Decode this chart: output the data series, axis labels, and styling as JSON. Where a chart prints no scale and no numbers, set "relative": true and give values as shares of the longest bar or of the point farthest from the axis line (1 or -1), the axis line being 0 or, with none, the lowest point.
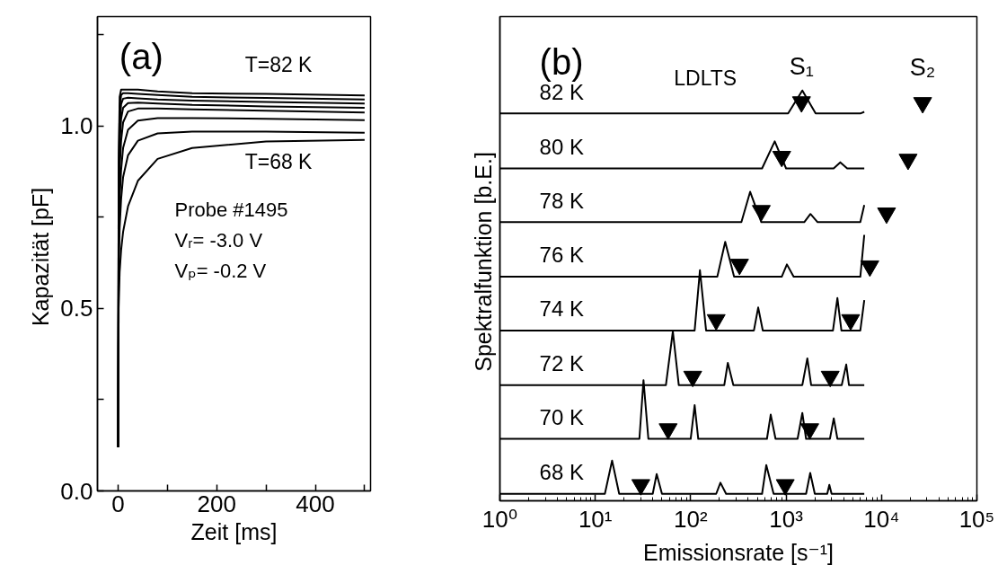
{
  "chart_data": [
    {
      "type": "line",
      "xlabel": "Zeit [ms]",
      "ylabel": "Kapazität  [pF]",
      "xlim": [
        -42,
        512
      ],
      "xticks": [
        0,
        {
          "value": 100,
          "label": null
        },
        200,
        {
          "value": 300,
          "label": null
        },
        400,
        {
          "value": 500,
          "label": null
        }
      ],
      "ylim": [
        0,
        1.3
      ],
      "yticks": [
        {
          "value": 0,
          "label": "0.0"
        },
        {
          "value": 0.25,
          "label": null
        },
        0.5,
        {
          "value": 0.75,
          "label": null
        },
        {
          "value": 1.0,
          "label": "1.0"
        },
        {
          "value": 1.25,
          "label": null
        }
      ],
      "grid": false,
      "x": [
        0,
        1,
        3,
        6,
        10,
        20,
        40,
        80,
        150,
        300,
        500
      ],
      "series": [
        {
          "color": "#000000",
          "values": [
            0.12,
            0.9,
            1.08,
            1.1,
            1.1,
            1.1,
            1.1,
            1.095,
            1.09,
            1.088,
            1.084
          ]
        },
        {
          "color": "#000000",
          "values": [
            0.12,
            0.85,
            1.05,
            1.085,
            1.09,
            1.09,
            1.088,
            1.085,
            1.08,
            1.077,
            1.073
          ]
        },
        {
          "color": "#000000",
          "values": [
            0.12,
            0.8,
            1.0,
            1.06,
            1.075,
            1.078,
            1.076,
            1.073,
            1.07,
            1.066,
            1.062
          ]
        },
        {
          "color": "#000000",
          "values": [
            0.12,
            0.75,
            0.95,
            1.02,
            1.05,
            1.063,
            1.064,
            1.062,
            1.058,
            1.054,
            1.05
          ]
        },
        {
          "color": "#000000",
          "values": [
            0.12,
            0.7,
            0.88,
            0.96,
            1.01,
            1.04,
            1.048,
            1.048,
            1.046,
            1.042,
            1.037
          ]
        },
        {
          "color": "#000000",
          "values": [
            0.12,
            0.65,
            0.8,
            0.88,
            0.94,
            0.99,
            1.015,
            1.022,
            1.022,
            1.02,
            1.016
          ]
        },
        {
          "color": "#000000",
          "values": [
            0.12,
            0.6,
            0.72,
            0.8,
            0.86,
            0.92,
            0.96,
            0.98,
            0.985,
            0.985,
            0.982
          ]
        },
        {
          "color": "#000000",
          "values": [
            0.12,
            0.5,
            0.6,
            0.66,
            0.71,
            0.78,
            0.85,
            0.91,
            0.94,
            0.958,
            0.962
          ]
        }
      ],
      "annotations": [
        "(a)",
        "T=82 K",
        "T=68 K",
        "Probe #1495",
        "Vᵣ= -3.0 V",
        "Vₚ= -0.2 V"
      ]
    },
    {
      "type": "line",
      "xlabel": "Emissionsrate [s⁻¹]",
      "ylabel": "Spektralfunktion  [b.E.]",
      "log": "x",
      "relative": true,
      "tick_labels": "x",
      "grid": false,
      "line_style": "solid",
      "xlim": [
        1,
        100000
      ],
      "xticks": [
        {
          "value": 1,
          "label": "10⁰"
        },
        {
          "value": 10,
          "label": "10¹"
        },
        {
          "value": 100,
          "label": "10²"
        },
        {
          "value": 1000,
          "label": "10³"
        },
        {
          "value": 10000,
          "label": "10⁴"
        },
        {
          "value": 100000,
          "label": "10⁵"
        }
      ],
      "series": [
        {
          "name": "82 K",
          "color": "#000000",
          "x": [
            1,
            1050,
            1480,
            2040,
            6000,
            6600
          ],
          "values": [
            0.944,
            0.944,
            1.0,
            0.944,
            0.944,
            0.948
          ]
        },
        {
          "name": "80 K",
          "color": "#000000",
          "x": [
            1,
            560,
            760,
            1000,
            3150,
            3700,
            4370,
            6600
          ],
          "values": [
            0.81,
            0.81,
            0.876,
            0.81,
            0.81,
            0.825,
            0.81,
            0.81
          ]
        },
        {
          "name": "78 K",
          "color": "#000000",
          "x": [
            1,
            340,
            420,
            550,
            1550,
            1800,
            2140,
            6000,
            6600
          ],
          "values": [
            0.679,
            0.679,
            0.753,
            0.679,
            0.679,
            0.699,
            0.679,
            0.679,
            0.721
          ]
        },
        {
          "name": "76 K",
          "color": "#000000",
          "x": [
            1,
            190,
            230,
            285,
            900,
            1020,
            1200,
            6000,
            6600
          ],
          "values": [
            0.546,
            0.546,
            0.631,
            0.546,
            0.546,
            0.576,
            0.546,
            0.546,
            0.648
          ]
        },
        {
          "name": "74 K",
          "color": "#000000",
          "x": [
            1,
            110,
            125,
            145,
            460,
            510,
            570,
            3100,
            3450,
            3800,
            6000,
            6600
          ],
          "values": [
            0.415,
            0.415,
            0.562,
            0.415,
            0.415,
            0.471,
            0.415,
            0.415,
            0.494,
            0.415,
            0.415,
            0.489
          ]
        },
        {
          "name": "72 K",
          "color": "#000000",
          "x": [
            1,
            55,
            65,
            75,
            225,
            245,
            280,
            1480,
            1670,
            1830,
            3830,
            4270,
            4560,
            6600
          ],
          "values": [
            0.282,
            0.282,
            0.413,
            0.282,
            0.282,
            0.336,
            0.282,
            0.282,
            0.347,
            0.282,
            0.282,
            0.332,
            0.282,
            0.282
          ]
        },
        {
          "name": "70 K",
          "color": "#000000",
          "x": [
            1,
            29,
            32,
            36,
            100,
            110,
            120,
            630,
            690,
            775,
            1320,
            1480,
            1620,
            2880,
            3160,
            3450,
            6600
          ],
          "values": [
            0.151,
            0.151,
            0.294,
            0.151,
            0.151,
            0.233,
            0.151,
            0.151,
            0.21,
            0.151,
            0.151,
            0.214,
            0.151,
            0.151,
            0.201,
            0.151,
            0.151
          ]
        },
        {
          "name": "68 K",
          "color": "#000000",
          "x": [
            1,
            12.6,
            15,
            17.8,
            40,
            44,
            50,
            185,
            205,
            235,
            560,
            620,
            740,
            1620,
            1790,
            2000,
            2700,
            2840,
            3000,
            6600
          ],
          "values": [
            0.017,
            0.017,
            0.098,
            0.017,
            0.017,
            0.065,
            0.017,
            0.017,
            0.044,
            0.017,
            0.017,
            0.087,
            0.017,
            0.017,
            0.068,
            0.017,
            0.017,
            0.039,
            0.017,
            0.017
          ]
        },
        {
          "name": "S₁",
          "type": "scatter",
          "marker": "triangle",
          "color": "#000000",
          "x": [
            1450,
            900,
            550,
            325,
            185,
            105,
            58,
            30
          ],
          "values": [
            0.972,
            0.839,
            0.707,
            0.576,
            0.441,
            0.303,
            0.175,
            0.039
          ]
        },
        {
          "name": "S₂",
          "type": "scatter",
          "marker": "triangle",
          "color": "#000000",
          "x": [
            27000,
            19000,
            11300,
            7550,
            4750,
            2900,
            1770,
            980
          ],
          "values": [
            0.97,
            0.832,
            0.701,
            0.572,
            0.441,
            0.303,
            0.175,
            0.039
          ]
        }
      ],
      "annotations": [
        "(b)",
        "LDLTS"
      ]
    }
  ]
}
